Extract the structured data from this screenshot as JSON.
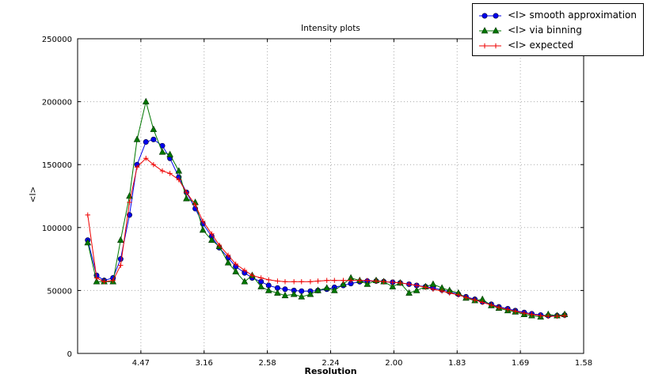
{
  "figure": {
    "title": "Intensity plots",
    "xlabel": "Resolution",
    "ylabel": "<I>"
  },
  "legend": {
    "entries": [
      {
        "label": "<I> smooth approximation",
        "marker": "circle",
        "color": "#0000ee"
      },
      {
        "label": "<I> via binning",
        "marker": "triangle",
        "color": "#007700"
      },
      {
        "label": "<I> expected",
        "marker": "plus",
        "color": "#ee0000"
      }
    ]
  },
  "chart_data": {
    "type": "line",
    "title": "Intensity plots",
    "xlabel": "Resolution",
    "ylabel": "<I>",
    "grid": true,
    "legend_position": "top-right",
    "x_axis": {
      "range": [
        0,
        0.4
      ],
      "tick_positions": [
        0.05,
        0.1,
        0.15,
        0.2,
        0.25,
        0.3,
        0.35,
        0.4
      ],
      "tick_labels": [
        "4.47",
        "3.16",
        "2.58",
        "2.24",
        "2.00",
        "1.83",
        "1.69",
        "1.58"
      ]
    },
    "y_axis": {
      "range": [
        0,
        250000
      ],
      "tick_positions": [
        0,
        50000,
        100000,
        150000,
        200000,
        250000
      ],
      "tick_labels": [
        "0",
        "50000",
        "100000",
        "150000",
        "200000",
        "250000"
      ]
    },
    "x": [
      0.008,
      0.015,
      0.021,
      0.028,
      0.034,
      0.041,
      0.047,
      0.054,
      0.06,
      0.067,
      0.073,
      0.08,
      0.086,
      0.093,
      0.099,
      0.106,
      0.112,
      0.119,
      0.125,
      0.132,
      0.138,
      0.145,
      0.151,
      0.158,
      0.164,
      0.171,
      0.177,
      0.184,
      0.19,
      0.197,
      0.203,
      0.21,
      0.216,
      0.223,
      0.229,
      0.236,
      0.242,
      0.249,
      0.255,
      0.262,
      0.268,
      0.275,
      0.281,
      0.288,
      0.294,
      0.301,
      0.307,
      0.314,
      0.32,
      0.327,
      0.333,
      0.34,
      0.346,
      0.353,
      0.359,
      0.366,
      0.372,
      0.379,
      0.385
    ],
    "series": [
      {
        "name": "<I> smooth approximation",
        "marker": "circle",
        "color": "#0000ee",
        "values": [
          90000,
          62000,
          58000,
          60000,
          75000,
          110000,
          150000,
          168000,
          170000,
          165000,
          155000,
          140000,
          128000,
          115000,
          103000,
          93000,
          84000,
          76000,
          69000,
          64000,
          60000,
          57000,
          54000,
          52000,
          51000,
          50000,
          49500,
          49500,
          50000,
          51000,
          52500,
          54000,
          55500,
          57000,
          57500,
          57500,
          57000,
          56500,
          56000,
          55000,
          54000,
          53000,
          52000,
          50500,
          49000,
          47000,
          45000,
          43000,
          41000,
          39000,
          37000,
          35500,
          34000,
          32500,
          31500,
          30500,
          30000,
          30000,
          30500
        ]
      },
      {
        "name": "<I> via binning",
        "marker": "triangle",
        "color": "#007700",
        "values": [
          88000,
          57000,
          57000,
          57000,
          90000,
          125000,
          170000,
          200000,
          178000,
          160000,
          158000,
          145000,
          123000,
          120000,
          98000,
          90000,
          85000,
          72000,
          65000,
          57000,
          62000,
          53000,
          50000,
          48000,
          46000,
          47000,
          45000,
          47000,
          50000,
          52000,
          50000,
          55000,
          60000,
          58000,
          55000,
          58000,
          57000,
          53000,
          56000,
          48000,
          50000,
          53000,
          55000,
          52000,
          50000,
          48000,
          44000,
          42000,
          43000,
          38000,
          36000,
          34000,
          33000,
          31000,
          30000,
          29000,
          31000,
          30000,
          31000
        ]
      },
      {
        "name": "<I> expected",
        "marker": "plus",
        "color": "#ee0000",
        "values": [
          110000,
          60000,
          57000,
          58000,
          70000,
          120000,
          148000,
          155000,
          150000,
          145000,
          143000,
          138000,
          128000,
          118000,
          105000,
          95000,
          86000,
          78000,
          71000,
          66000,
          62000,
          60000,
          58500,
          57500,
          57000,
          57000,
          57000,
          57000,
          57500,
          58000,
          58000,
          58000,
          58000,
          58000,
          58000,
          57500,
          57000,
          56500,
          56000,
          55000,
          54000,
          52500,
          51000,
          49500,
          48000,
          46500,
          44500,
          42500,
          40500,
          38500,
          36500,
          35000,
          33500,
          32000,
          31000,
          30000,
          29500,
          29500,
          30000
        ]
      }
    ]
  }
}
